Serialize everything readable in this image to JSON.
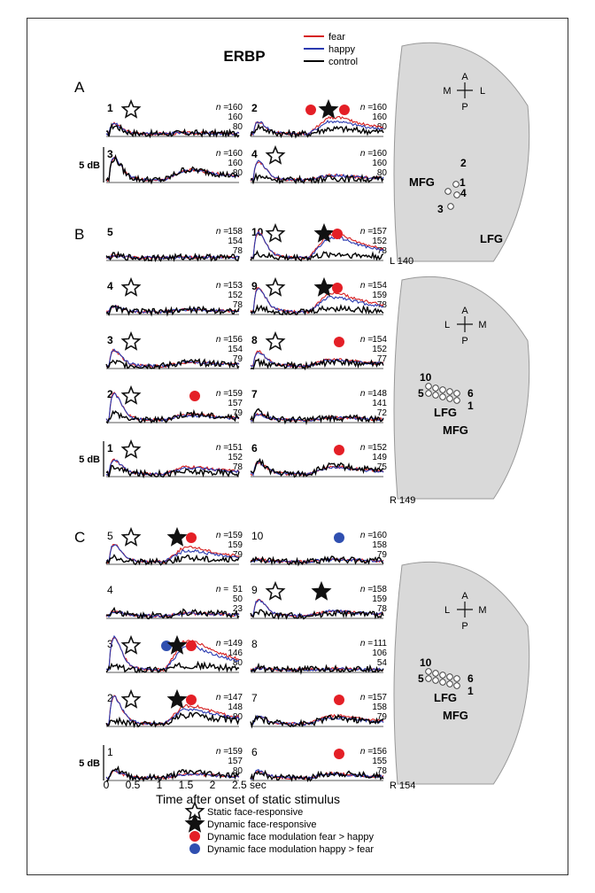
{
  "figure": {
    "title": "ERBP",
    "legend": [
      {
        "label": "fear",
        "color": "#d62020"
      },
      {
        "label": "happy",
        "color": "#2a3ab0"
      },
      {
        "label": "control",
        "color": "#000000"
      }
    ],
    "n_prefix": "n =",
    "scale_label": "5 dB",
    "x_axis": {
      "label": "Time after onset of static stimulus",
      "ticks": [
        "0",
        "0.5",
        "1",
        "1.5",
        "2"
      ],
      "last_tick": "2.5 sec",
      "range": [
        0,
        2.5
      ]
    },
    "marker_legend": [
      {
        "symbol": "open-star",
        "label": "Static face-responsive"
      },
      {
        "symbol": "filled-star",
        "label": "Dynamic face-responsive"
      },
      {
        "symbol": "red-dot",
        "label": "Dynamic face modulation fear > happy"
      },
      {
        "symbol": "blue-dot",
        "label": "Dynamic face modulation happy > fear"
      }
    ],
    "brains": [
      {
        "id": "A",
        "label": "L 140",
        "orientation": {
          "top": "A",
          "left": "M",
          "right": "L",
          "bottom": "P"
        },
        "region_labels": [
          "MFG",
          "LFG"
        ],
        "contact_labels": [
          "1",
          "2",
          "3",
          "4"
        ]
      },
      {
        "id": "B",
        "label": "R 149",
        "orientation": {
          "top": "A",
          "left": "L",
          "right": "M",
          "bottom": "P"
        },
        "region_labels": [
          "LFG",
          "MFG"
        ],
        "contact_labels": [
          "10",
          "5",
          "6",
          "1"
        ]
      },
      {
        "id": "C",
        "label": "R 154",
        "orientation": {
          "top": "A",
          "left": "L",
          "right": "M",
          "bottom": "P"
        },
        "region_labels": [
          "LFG",
          "MFG"
        ],
        "contact_labels": [
          "10",
          "5",
          "6",
          "1"
        ]
      }
    ]
  },
  "chart_data": {
    "type": "line",
    "x_unit": "sec",
    "x_range": [
      0,
      2.5
    ],
    "series_names": [
      "fear",
      "happy",
      "control"
    ],
    "panels": [
      {
        "section": "A",
        "electrode": "1",
        "n": [
          "160",
          "160",
          "80"
        ],
        "markers": [
          "open-star"
        ],
        "peak_dB": [
          1.4,
          1.4,
          1.1
        ],
        "late_dB": [
          0.1,
          0.1,
          0.1
        ]
      },
      {
        "section": "A",
        "electrode": "2",
        "n": [
          "160",
          "160",
          "80"
        ],
        "markers": [
          "red-dot",
          "filled-star",
          "red-dot"
        ],
        "peak_dB": [
          1.7,
          1.7,
          1.0
        ],
        "late_dB": [
          2.3,
          1.7,
          0.7
        ]
      },
      {
        "section": "A",
        "electrode": "3",
        "n": [
          "160",
          "160",
          "80"
        ],
        "markers": [],
        "peak_dB": [
          3.1,
          3.1,
          3.0
        ],
        "late_dB": [
          1.4,
          1.3,
          1.4
        ]
      },
      {
        "section": "A",
        "electrode": "4",
        "n": [
          "160",
          "160",
          "80"
        ],
        "markers": [
          "open-star"
        ],
        "peak_dB": [
          2.6,
          2.6,
          0.5
        ],
        "late_dB": [
          0.6,
          0.6,
          0.2
        ]
      },
      {
        "section": "B",
        "electrode": "5",
        "n": [
          "158",
          "154",
          "78"
        ],
        "markers": [],
        "peak_dB": [
          0.3,
          0.3,
          0.3
        ],
        "late_dB": [
          0.1,
          0.1,
          0.1
        ]
      },
      {
        "section": "B",
        "electrode": "10",
        "n": [
          "157",
          "152",
          "78"
        ],
        "markers": [
          "open-star",
          "filled-star",
          "red-dot"
        ],
        "peak_dB": [
          3.6,
          3.6,
          0.5
        ],
        "late_dB": [
          3.3,
          2.8,
          0.5
        ]
      },
      {
        "section": "B",
        "electrode": "4",
        "n": [
          "153",
          "152",
          "78"
        ],
        "markers": [
          "open-star"
        ],
        "peak_dB": [
          0.8,
          0.8,
          0.5
        ],
        "late_dB": [
          0.3,
          0.3,
          0.3
        ]
      },
      {
        "section": "B",
        "electrode": "9",
        "n": [
          "154",
          "159",
          "78"
        ],
        "markers": [
          "open-star",
          "filled-star",
          "red-dot"
        ],
        "peak_dB": [
          3.3,
          3.3,
          0.5
        ],
        "late_dB": [
          2.6,
          2.0,
          0.5
        ]
      },
      {
        "section": "B",
        "electrode": "3",
        "n": [
          "156",
          "154",
          "79"
        ],
        "markers": [
          "open-star"
        ],
        "peak_dB": [
          2.2,
          2.2,
          0.5
        ],
        "late_dB": [
          0.5,
          0.5,
          0.5
        ]
      },
      {
        "section": "B",
        "electrode": "8",
        "n": [
          "154",
          "152",
          "77"
        ],
        "markers": [
          "open-star",
          "red-dot"
        ],
        "peak_dB": [
          2.0,
          2.0,
          0.5
        ],
        "late_dB": [
          0.9,
          0.8,
          0.5
        ]
      },
      {
        "section": "B",
        "electrode": "2",
        "n": [
          "159",
          "157",
          "79"
        ],
        "markers": [
          "open-star",
          "red-dot"
        ],
        "peak_dB": [
          3.7,
          3.7,
          1.0
        ],
        "late_dB": [
          0.8,
          0.6,
          0.8
        ]
      },
      {
        "section": "B",
        "electrode": "7",
        "n": [
          "148",
          "141",
          "72"
        ],
        "markers": [],
        "peak_dB": [
          0.8,
          0.8,
          1.3
        ],
        "late_dB": [
          0.3,
          0.3,
          0.3
        ]
      },
      {
        "section": "B",
        "electrode": "1",
        "n": [
          "151",
          "152",
          "78"
        ],
        "markers": [
          "open-star"
        ],
        "peak_dB": [
          2.0,
          2.0,
          1.0
        ],
        "late_dB": [
          1.0,
          0.8,
          0.3
        ]
      },
      {
        "section": "B",
        "electrode": "6",
        "n": [
          "152",
          "149",
          "75"
        ],
        "markers": [
          "red-dot"
        ],
        "peak_dB": [
          1.6,
          1.6,
          1.7
        ],
        "late_dB": [
          1.0,
          0.9,
          1.1
        ]
      },
      {
        "section": "C",
        "electrode": "5",
        "n": [
          "159",
          "159",
          "79"
        ],
        "markers": [
          "open-star",
          "filled-star",
          "red-dot"
        ],
        "peak_dB": [
          2.4,
          2.4,
          0.5
        ],
        "late_dB": [
          2.0,
          1.5,
          0.5
        ]
      },
      {
        "section": "C",
        "electrode": "10",
        "n": [
          "160",
          "158",
          "79"
        ],
        "markers": [
          "blue-dot"
        ],
        "peak_dB": [
          0.3,
          0.3,
          0.3
        ],
        "late_dB": [
          0.3,
          0.3,
          0.3
        ]
      },
      {
        "section": "C",
        "electrode": "4",
        "n": [
          "51",
          "50",
          "23"
        ],
        "markers": [],
        "peak_dB": [
          0.6,
          0.6,
          0.8
        ],
        "late_dB": [
          0.3,
          0.3,
          0.5
        ]
      },
      {
        "section": "C",
        "electrode": "9",
        "n": [
          "158",
          "159",
          "78"
        ],
        "markers": [
          "open-star",
          "filled-star"
        ],
        "peak_dB": [
          2.2,
          2.2,
          0.5
        ],
        "late_dB": [
          0.6,
          0.6,
          0.4
        ]
      },
      {
        "section": "C",
        "electrode": "3",
        "n": [
          "149",
          "146",
          "80"
        ],
        "markers": [
          "open-star",
          "blue-dot",
          "filled-star",
          "red-dot"
        ],
        "peak_dB": [
          4.6,
          4.6,
          0.5
        ],
        "late_dB": [
          4.0,
          3.2,
          0.6
        ]
      },
      {
        "section": "C",
        "electrode": "8",
        "n": [
          "111",
          "106",
          "54"
        ],
        "markers": [],
        "peak_dB": [
          0.2,
          0.2,
          0.3
        ],
        "late_dB": [
          0.1,
          0.1,
          0.1
        ]
      },
      {
        "section": "C",
        "electrode": "2",
        "n": [
          "147",
          "148",
          "80"
        ],
        "markers": [
          "open-star",
          "filled-star",
          "red-dot"
        ],
        "peak_dB": [
          3.8,
          3.8,
          0.5
        ],
        "late_dB": [
          2.5,
          2.0,
          1.2
        ]
      },
      {
        "section": "C",
        "electrode": "7",
        "n": [
          "157",
          "158",
          "79"
        ],
        "markers": [
          "red-dot"
        ],
        "peak_dB": [
          1.0,
          1.0,
          0.8
        ],
        "late_dB": [
          1.1,
          0.8,
          0.8
        ]
      },
      {
        "section": "C",
        "electrode": "1",
        "n": [
          "159",
          "157",
          "80"
        ],
        "markers": [],
        "peak_dB": [
          1.0,
          1.0,
          1.3
        ],
        "late_dB": [
          0.5,
          0.5,
          0.8
        ]
      },
      {
        "section": "C",
        "electrode": "6",
        "n": [
          "156",
          "155",
          "78"
        ],
        "markers": [
          "red-dot"
        ],
        "peak_dB": [
          1.0,
          1.0,
          0.8
        ],
        "late_dB": [
          0.6,
          0.5,
          0.6
        ]
      }
    ]
  }
}
